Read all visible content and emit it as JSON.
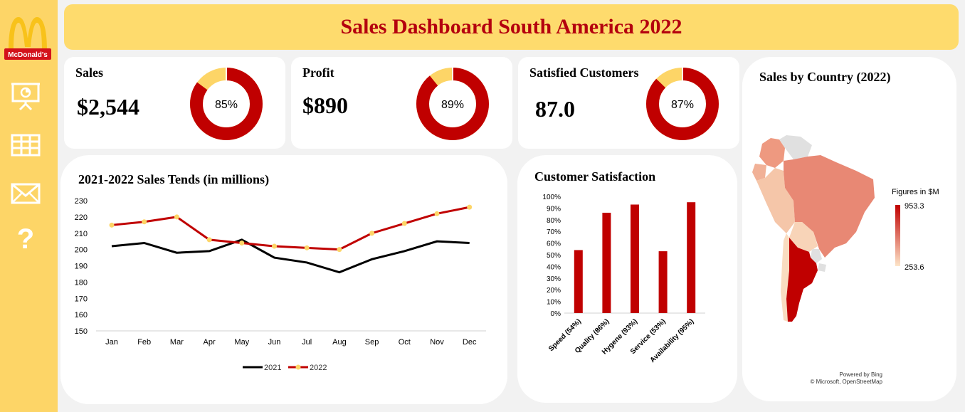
{
  "header": {
    "title": "Sales Dashboard South America 2022"
  },
  "brand": {
    "logo_text": "McDonald's",
    "accent": "#c00000",
    "gold": "#fdd567"
  },
  "nav": [
    {
      "icon": "presentation-chart-icon"
    },
    {
      "icon": "table-grid-icon"
    },
    {
      "icon": "mail-icon"
    },
    {
      "icon": "help-icon",
      "label": "?"
    }
  ],
  "kpis": [
    {
      "title": "Sales",
      "value": "$2,544",
      "percent": 85,
      "percent_label": "85%"
    },
    {
      "title": "Profit",
      "value": "$890",
      "percent": 89,
      "percent_label": "89%"
    },
    {
      "title": "Satisfied Customers",
      "value": "87.0",
      "percent": 87,
      "percent_label": "87%"
    }
  ],
  "chart_data": [
    {
      "type": "line",
      "title": "2021-2022 Sales Tends (in millions)",
      "categories": [
        "Jan",
        "Feb",
        "Mar",
        "Apr",
        "May",
        "Jun",
        "Jul",
        "Aug",
        "Sep",
        "Oct",
        "Nov",
        "Dec"
      ],
      "series": [
        {
          "name": "2021",
          "color": "#000000",
          "values": [
            202,
            204,
            198,
            199,
            206,
            195,
            192,
            186,
            194,
            199,
            205,
            204
          ]
        },
        {
          "name": "2022",
          "color": "#c00000",
          "marker": "#fdd567",
          "values": [
            215,
            217,
            220,
            206,
            204,
            202,
            201,
            200,
            210,
            216,
            222,
            226
          ]
        }
      ],
      "ylim": [
        150,
        230
      ],
      "yticks": [
        "150",
        "160",
        "170",
        "180",
        "190",
        "200",
        "210",
        "220",
        "230"
      ],
      "legend": "bottom"
    },
    {
      "type": "bar",
      "title": "Customer Satisfaction",
      "categories": [
        "Speed (54%)",
        "Quality (86%)",
        "Hygene (93%)",
        "Service (53%)",
        "Availability (95%)"
      ],
      "values": [
        54,
        86,
        93,
        53,
        95
      ],
      "color": "#c00000",
      "ylim": [
        0,
        100
      ],
      "yticks": [
        "0%",
        "10%",
        "20%",
        "30%",
        "40%",
        "50%",
        "60%",
        "70%",
        "80%",
        "90%",
        "100%"
      ]
    },
    {
      "type": "map",
      "title": "Sales by Country (2022)",
      "legend_title": "Figures in $M",
      "legend_max": "953.3",
      "legend_min": "253.6",
      "attribution_1": "Powered by Bing",
      "attribution_2": "© Microsoft, OpenStreetMap"
    }
  ]
}
